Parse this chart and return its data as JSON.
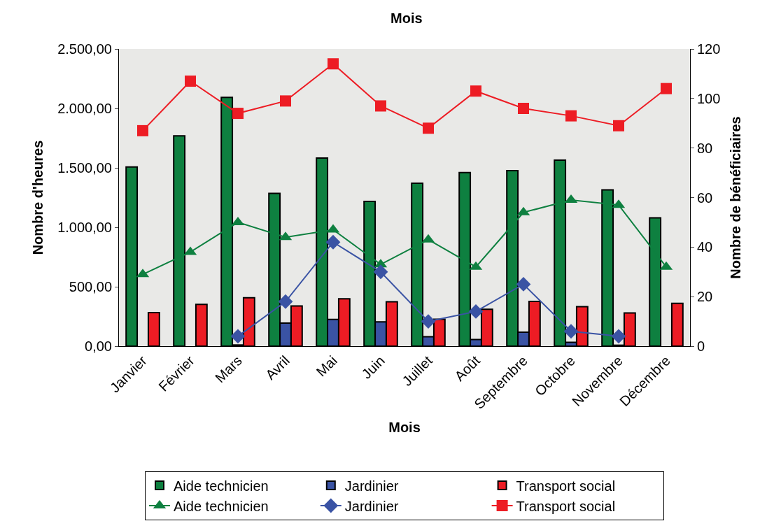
{
  "chart_data": {
    "type": "bar",
    "title": "Mois",
    "xlabel": "Mois",
    "ylabel": "Nombre d'heures",
    "y2label": "Nombre de bénéficiaires",
    "categories": [
      "Janvier",
      "Février",
      "Mars",
      "Avril",
      "Mai",
      "Juin",
      "Juillet",
      "Août",
      "Septembre",
      "Octobre",
      "Novembre",
      "Décembre"
    ],
    "series": [
      {
        "name": "Aide technicien",
        "color": "#0e8040",
        "values": [
          1508,
          1769,
          2092,
          1285,
          1583,
          1217,
          1371,
          1460,
          1477,
          1565,
          1315,
          1079
        ]
      },
      {
        "name": "Jardinier",
        "color": "#3a53a4",
        "values": [
          null,
          null,
          10,
          194,
          225,
          204,
          79,
          56,
          117,
          33,
          8,
          null
        ]
      },
      {
        "name": "Transport social",
        "color": "#ed1c24",
        "values": [
          283,
          352,
          408,
          338,
          398,
          373,
          227,
          310,
          377,
          333,
          279,
          360
        ]
      },
      {
        "name": "Aide technicien",
        "type": "line",
        "axis": "y2",
        "marker": "triangle",
        "color": "#0e8040",
        "values": [
          29,
          38,
          50,
          44,
          47,
          33,
          43,
          32,
          54,
          59,
          57,
          32
        ]
      },
      {
        "name": "Jardinier",
        "type": "line",
        "axis": "y2",
        "marker": "diamond",
        "color": "#3a53a4",
        "values": [
          null,
          null,
          4,
          18,
          42,
          30,
          10,
          14,
          25,
          6,
          4,
          null
        ]
      },
      {
        "name": "Transport social",
        "type": "line",
        "axis": "y2",
        "marker": "square",
        "color": "#ed1c24",
        "values": [
          87,
          107,
          94,
          99,
          114,
          97,
          88,
          103,
          96,
          93,
          89,
          104
        ]
      }
    ],
    "ylim": [
      0,
      2500
    ],
    "yticks": [
      {
        "value": 0,
        "label": "0,00"
      },
      {
        "value": 500,
        "label": "500,00"
      },
      {
        "value": 1000,
        "label": "1.000,00"
      },
      {
        "value": 1500,
        "label": "1.500,00"
      },
      {
        "value": 2000,
        "label": "2.000,00"
      },
      {
        "value": 2500,
        "label": "2.500,00"
      }
    ],
    "y2lim": [
      0,
      120
    ],
    "y2ticks": [
      0,
      20,
      40,
      60,
      80,
      100,
      120
    ],
    "grid": false,
    "legend": "bottom"
  }
}
